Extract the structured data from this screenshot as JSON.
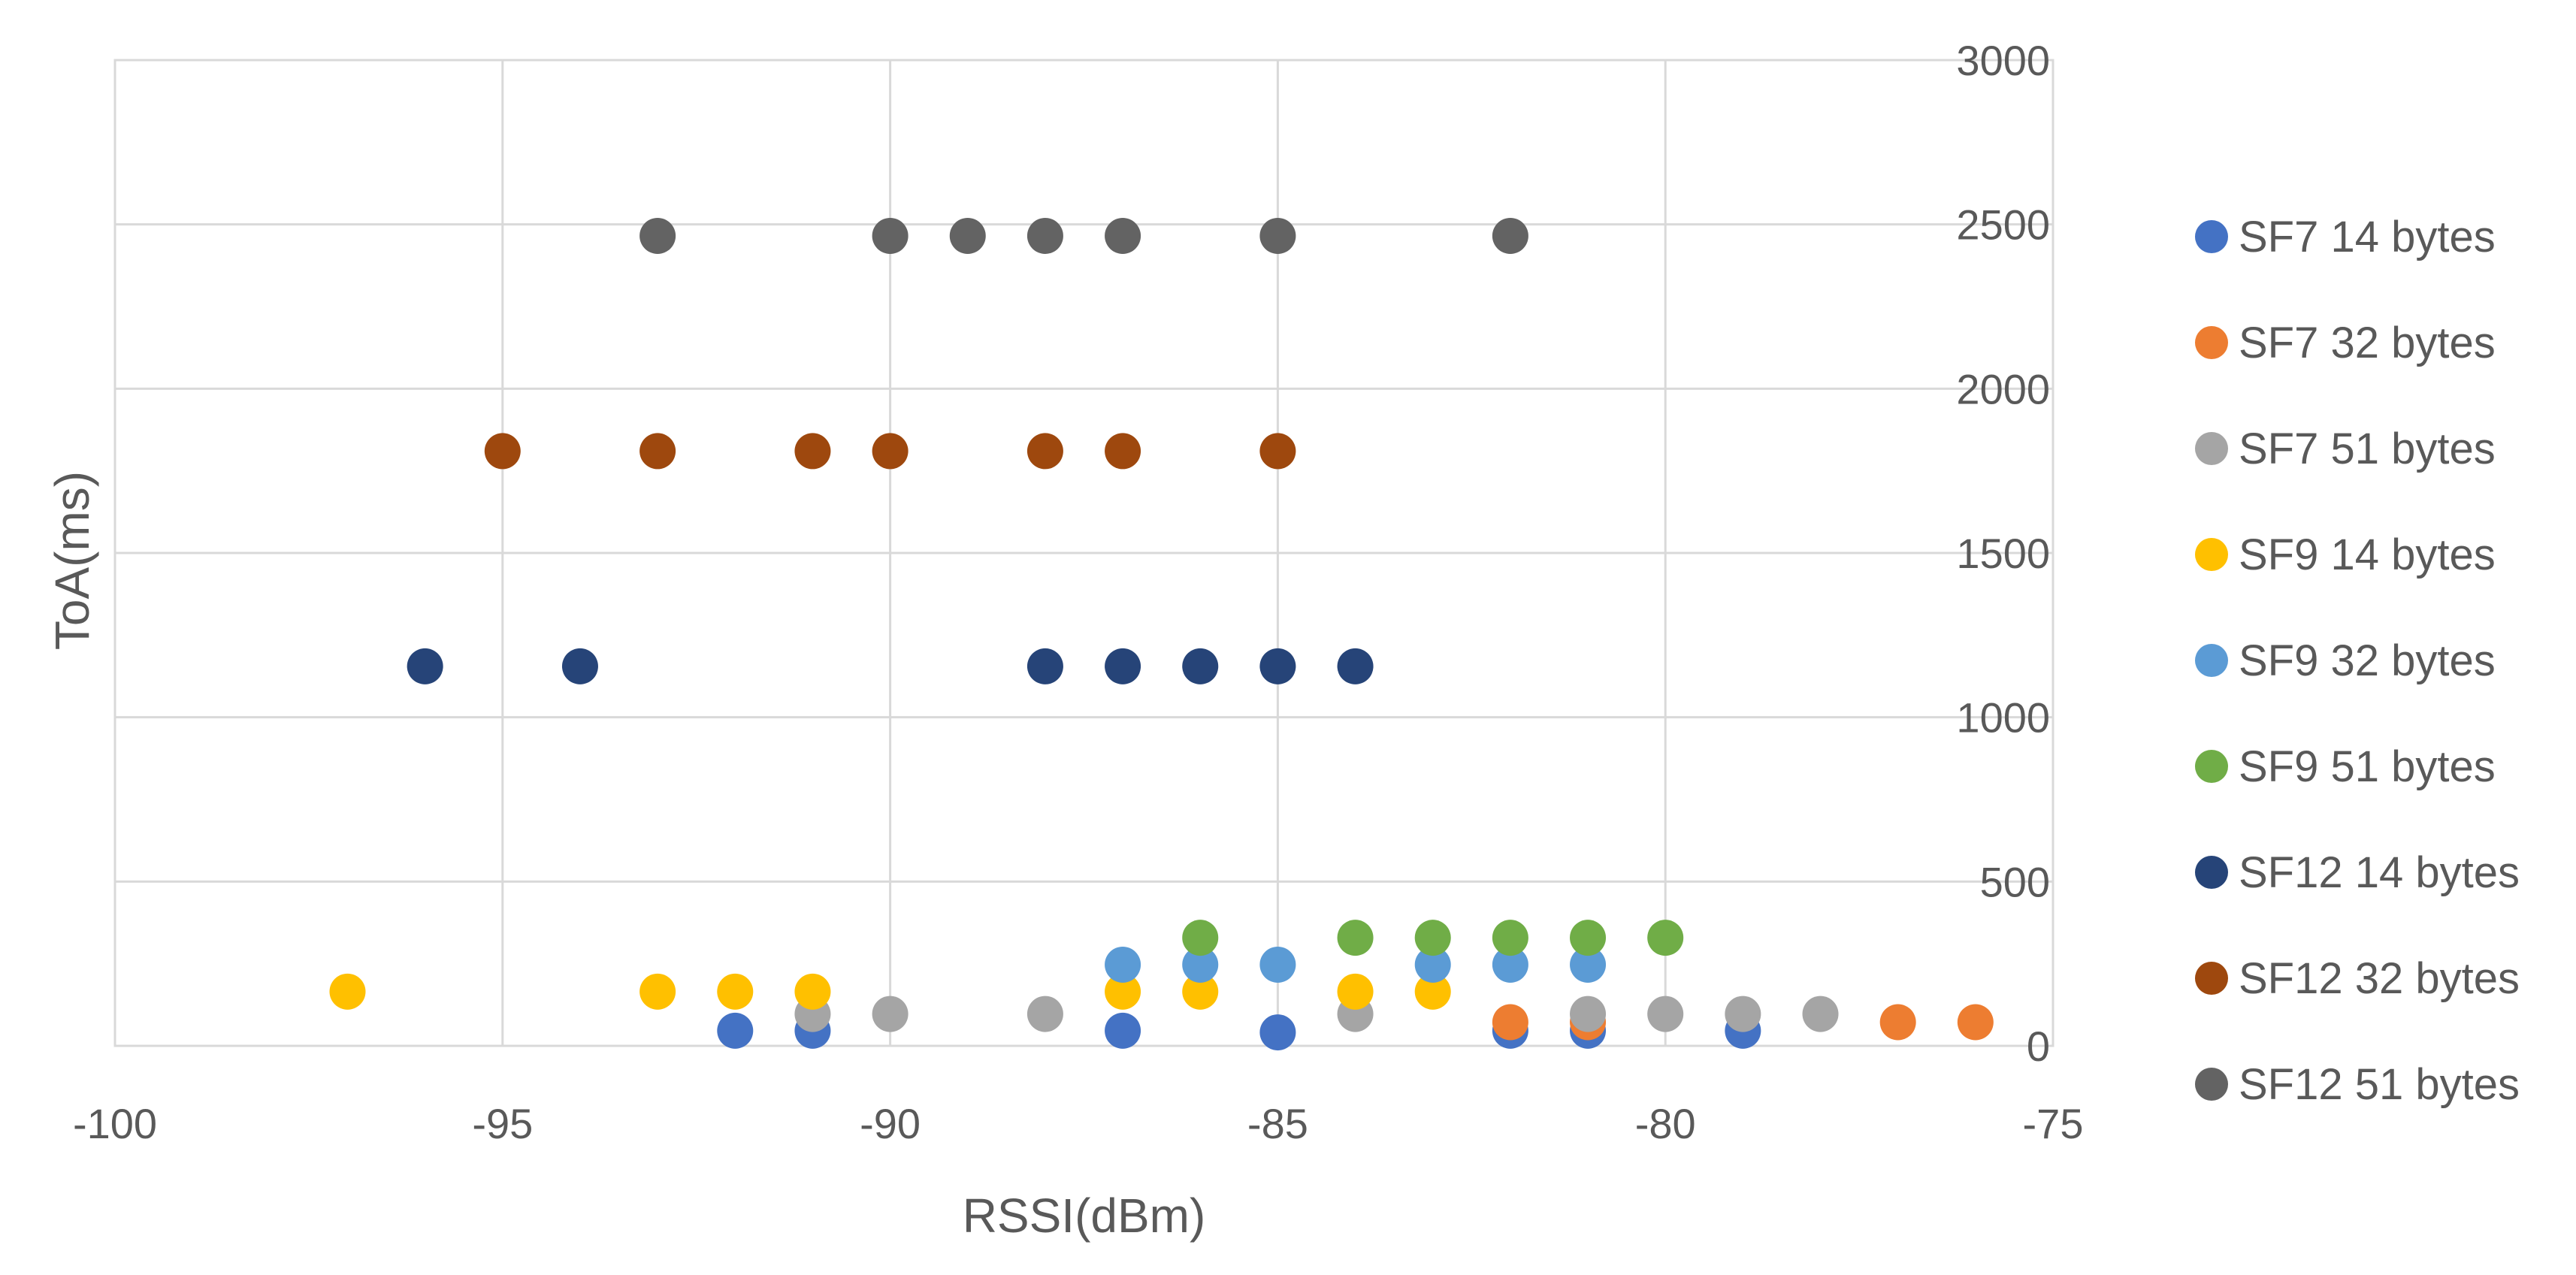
{
  "chart_data": {
    "type": "scatter",
    "title": "",
    "xlabel": "RSSI(dBm)",
    "ylabel": "ToA(ms)",
    "xlim": [
      -100,
      -75
    ],
    "ylim": [
      0,
      3000
    ],
    "x_ticks": [
      -100,
      -95,
      -90,
      -85,
      -80,
      -75
    ],
    "y_ticks": [
      0,
      500,
      1000,
      1500,
      2000,
      2500,
      3000
    ],
    "grid": true,
    "legend_position": "right",
    "series": [
      {
        "name": "SF7 14 bytes",
        "color": "#4472C4",
        "points": [
          [
            -92,
            46
          ],
          [
            -91,
            46
          ],
          [
            -87,
            46
          ],
          [
            -85,
            41
          ],
          [
            -82,
            46
          ],
          [
            -81,
            46
          ],
          [
            -79,
            46
          ]
        ]
      },
      {
        "name": "SF7 32 bytes",
        "color": "#ED7D31",
        "points": [
          [
            -82,
            72
          ],
          [
            -81,
            72
          ],
          [
            -77,
            72
          ],
          [
            -76,
            72
          ]
        ]
      },
      {
        "name": "SF7 51 bytes",
        "color": "#A5A5A5",
        "points": [
          [
            -91,
            97
          ],
          [
            -90,
            97
          ],
          [
            -88,
            97
          ],
          [
            -84,
            97
          ],
          [
            -81,
            97
          ],
          [
            -80,
            97
          ],
          [
            -79,
            97
          ],
          [
            -78,
            97
          ]
        ]
      },
      {
        "name": "SF9 14 bytes",
        "color": "#FFC000",
        "points": [
          [
            -97,
            165
          ],
          [
            -93,
            165
          ],
          [
            -92,
            165
          ],
          [
            -91,
            165
          ],
          [
            -87,
            165
          ],
          [
            -86,
            165
          ],
          [
            -84,
            165
          ],
          [
            -83,
            165
          ]
        ]
      },
      {
        "name": "SF9 32 bytes",
        "color": "#5B9BD5",
        "points": [
          [
            -87,
            247
          ],
          [
            -86,
            247
          ],
          [
            -85,
            247
          ],
          [
            -83,
            247
          ],
          [
            -82,
            247
          ],
          [
            -81,
            247
          ]
        ]
      },
      {
        "name": "SF9 51 bytes",
        "color": "#70AD47",
        "points": [
          [
            -86,
            329
          ],
          [
            -84,
            329
          ],
          [
            -83,
            329
          ],
          [
            -82,
            329
          ],
          [
            -81,
            329
          ],
          [
            -80,
            329
          ]
        ]
      },
      {
        "name": "SF12 14 bytes",
        "color": "#264478",
        "points": [
          [
            -96,
            1155
          ],
          [
            -94,
            1155
          ],
          [
            -88,
            1155
          ],
          [
            -87,
            1155
          ],
          [
            -86,
            1155
          ],
          [
            -85,
            1155
          ],
          [
            -84,
            1155
          ]
        ]
      },
      {
        "name": "SF12 32 bytes",
        "color": "#9E480E",
        "points": [
          [
            -95,
            1810
          ],
          [
            -93,
            1810
          ],
          [
            -91,
            1810
          ],
          [
            -90,
            1810
          ],
          [
            -88,
            1810
          ],
          [
            -87,
            1810
          ],
          [
            -85,
            1810
          ]
        ]
      },
      {
        "name": "SF12 51 bytes",
        "color": "#636363",
        "points": [
          [
            -93,
            2465
          ],
          [
            -90,
            2465
          ],
          [
            -89,
            2465
          ],
          [
            -88,
            2465
          ],
          [
            -87,
            2465
          ],
          [
            -85,
            2465
          ],
          [
            -82,
            2465
          ]
        ]
      }
    ]
  }
}
